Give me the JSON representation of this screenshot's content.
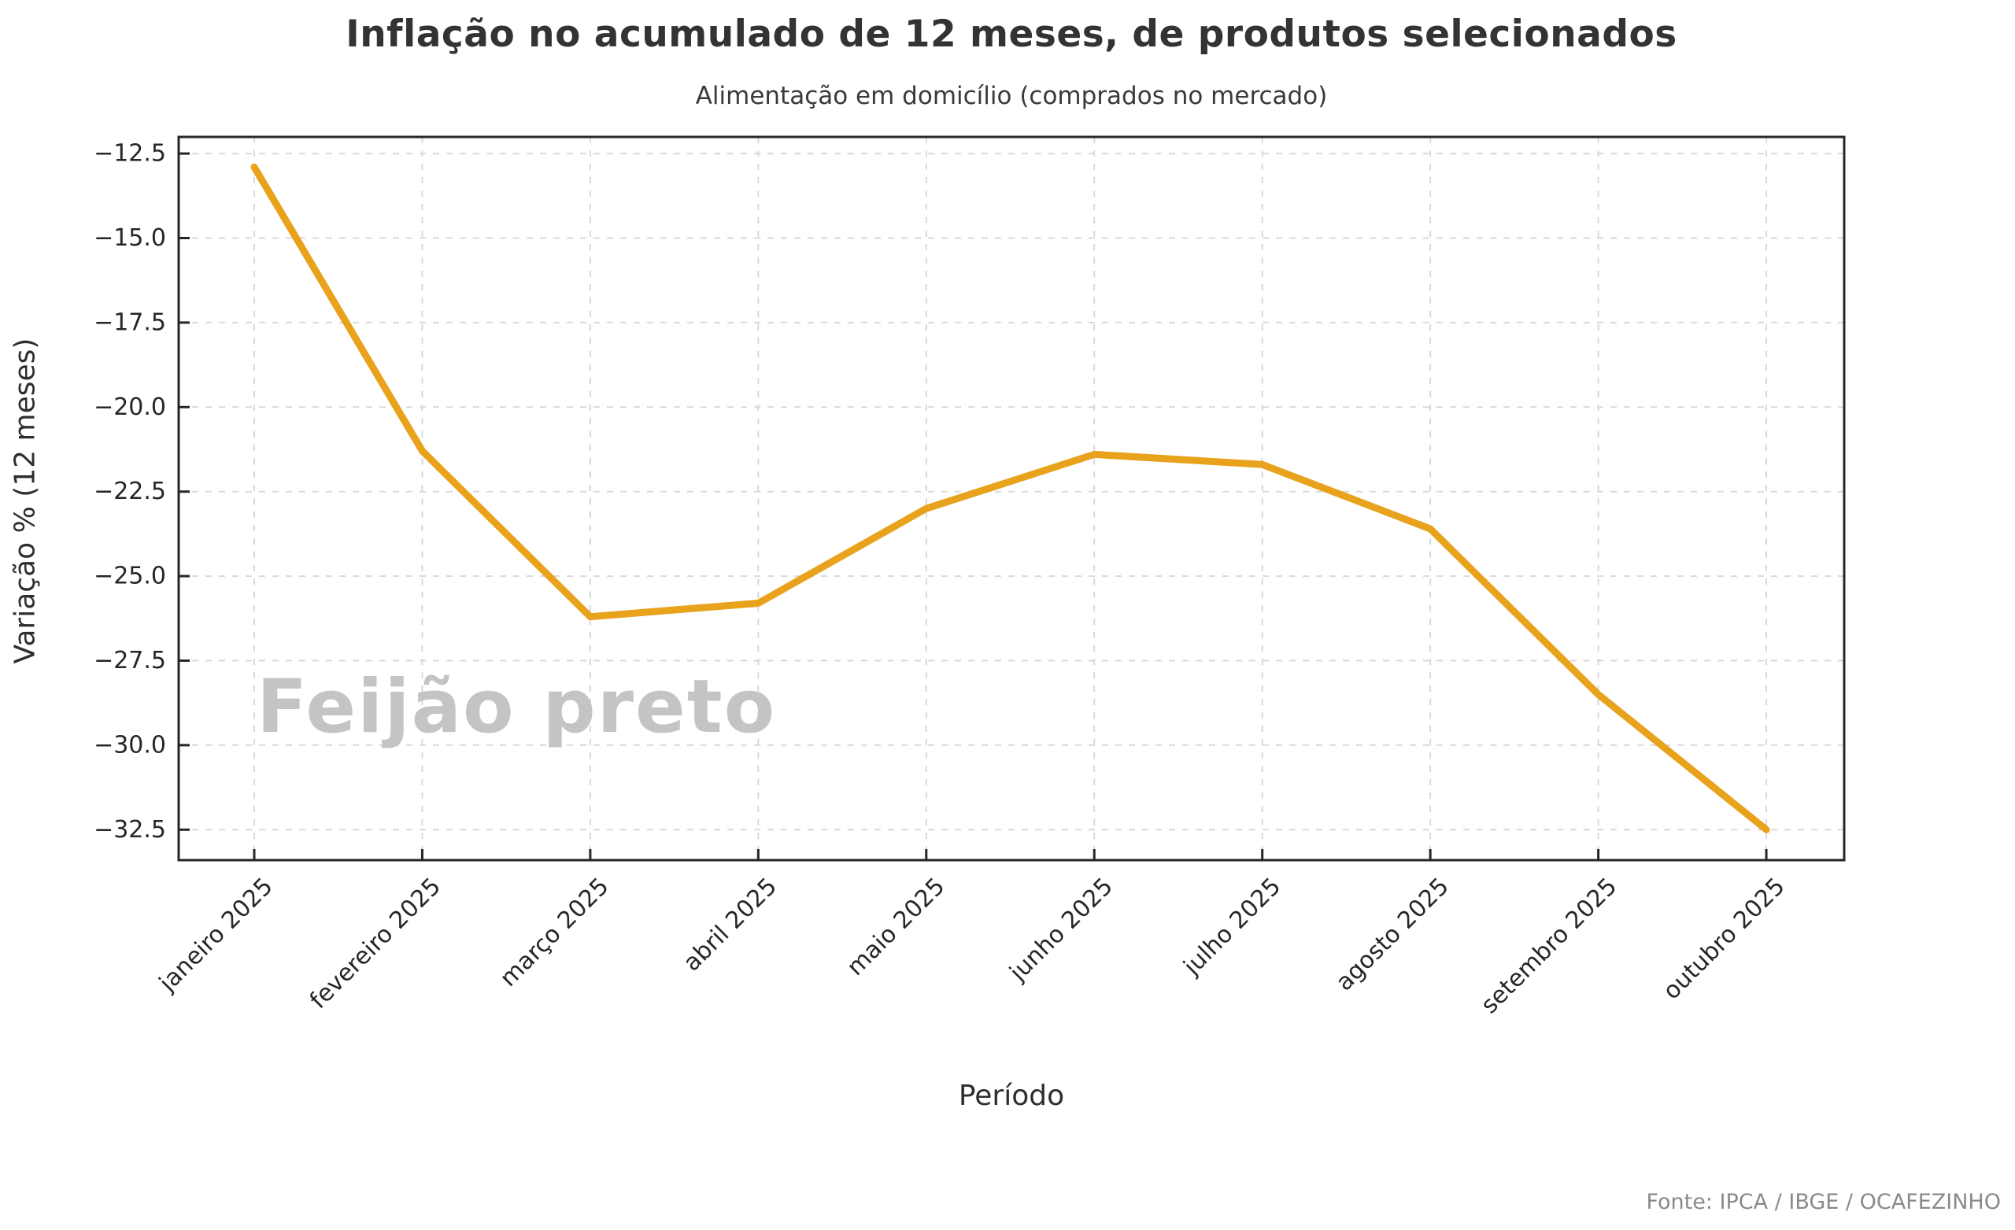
{
  "header": {
    "title": "Inflação no acumulado de 12 meses, de produtos selecionados",
    "subtitle": "Alimentação em domicílio (comprados no mercado)"
  },
  "watermark": "Feijão preto",
  "footer": {
    "source": "Fonte: IPCA / IBGE / OCAFEZINHO"
  },
  "chart_data": {
    "type": "line",
    "series_label": "Feijão preto",
    "title": "Inflação no acumulado de 12 meses, de produtos selecionados",
    "subtitle": "Alimentação em domicílio (comprados no mercado)",
    "xlabel": "Período",
    "ylabel": "Variação % (12 meses)",
    "categories": [
      "janeiro 2025",
      "fevereiro 2025",
      "março 2025",
      "abril 2025",
      "maio 2025",
      "junho 2025",
      "julho 2025",
      "agosto 2025",
      "setembro 2025",
      "outubro 2025"
    ],
    "values": [
      -12.9,
      -21.3,
      -26.2,
      -25.8,
      -23.0,
      -21.4,
      -21.7,
      -23.6,
      -28.5,
      -32.5
    ],
    "yticks": [
      -12.5,
      -15.0,
      -17.5,
      -20.0,
      -22.5,
      -25.0,
      -27.5,
      -30.0,
      -32.5
    ],
    "ylim": [
      -33.5,
      -11.9
    ],
    "x_tick_rotation": 45,
    "grid": true,
    "grid_style": "dashed",
    "legend": "none",
    "line_color": "#E8A21C",
    "grid_color": "#d9d9d9",
    "spine_color": "#262626",
    "tick_text_color": "#262626",
    "background_color": "#ffffff"
  }
}
